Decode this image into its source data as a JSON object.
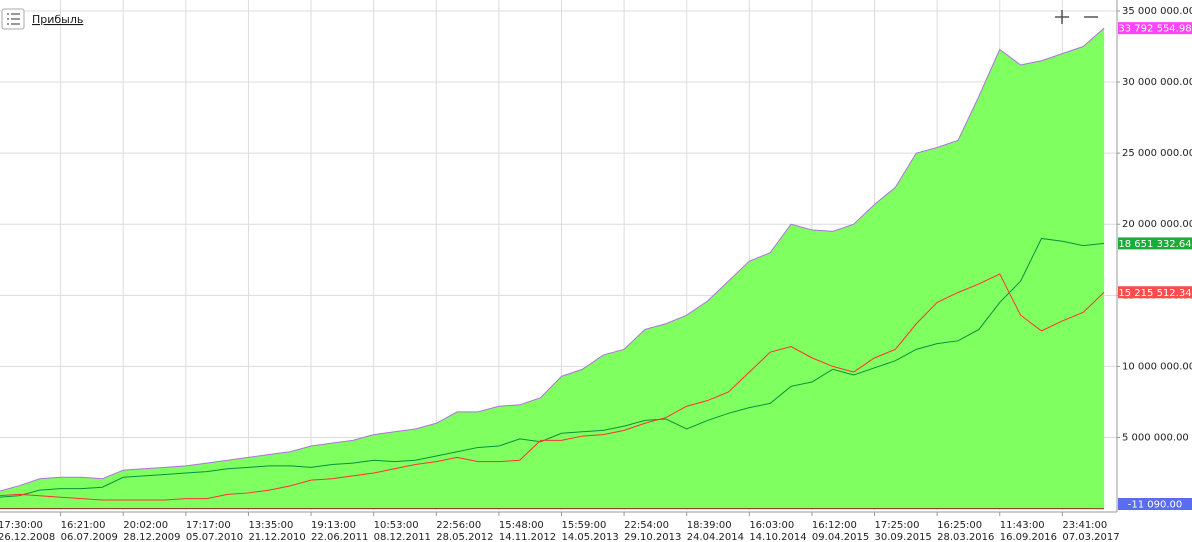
{
  "chart_data": {
    "type": "area",
    "title": "Прибыль",
    "categories": [
      "26.12.2008",
      null,
      null,
      "06.07.2009",
      null,
      null,
      "28.12.2009",
      null,
      null,
      "05.07.2010",
      null,
      null,
      "21.12.2010",
      null,
      null,
      "22.06.2011",
      null,
      null,
      "08.12.2011",
      null,
      null,
      "28.05.2012",
      null,
      null,
      "14.11.2012",
      null,
      null,
      "14.05.2013",
      null,
      null,
      "29.10.2013",
      null,
      null,
      "24.04.2014",
      null,
      null,
      "14.10.2014",
      null,
      null,
      "09.04.2015",
      null,
      null,
      "30.09.2015",
      null,
      null,
      "28.03.2016",
      null,
      null,
      "16.09.2016",
      null,
      null,
      "07.03.2017",
      null,
      null
    ],
    "times": [
      "17:30:00",
      null,
      null,
      "16:21:00",
      null,
      null,
      "20:02:00",
      null,
      null,
      "17:17:00",
      null,
      null,
      "13:35:00",
      null,
      null,
      "19:13:00",
      null,
      null,
      "10:53:00",
      null,
      null,
      "22:56:00",
      null,
      null,
      "15:48:00",
      null,
      null,
      "15:59:00",
      null,
      null,
      "22:54:00",
      null,
      null,
      "18:39:00",
      null,
      null,
      "16:03:00",
      null,
      null,
      "16:12:00",
      null,
      null,
      "17:25:00",
      null,
      null,
      "16:25:00",
      null,
      null,
      "11:43:00",
      null,
      null,
      "23:41:00",
      null,
      null
    ],
    "series": [
      {
        "kind": "area",
        "color": "#80ff60",
        "line_color": "#b070e0",
        "label_color": "#ff44ff",
        "last_label": "33 792 554.98",
        "values": [
          1200000,
          1600000,
          2100000,
          2200000,
          2200000,
          2100000,
          2700000,
          2800000,
          2900000,
          3000000,
          3200000,
          3400000,
          3600000,
          3800000,
          4000000,
          4400000,
          4600000,
          4800000,
          5200000,
          5400000,
          5600000,
          6000000,
          6800000,
          6800000,
          7200000,
          7300000,
          7800000,
          9300000,
          9800000,
          10800000,
          11200000,
          12600000,
          13000000,
          13600000,
          14600000,
          16000000,
          17400000,
          18000000,
          20000000,
          19600000,
          19500000,
          20000000,
          21400000,
          22600000,
          25000000,
          25400000,
          25900000,
          29000000,
          32300000,
          31200000,
          31500000,
          32000000,
          32500000,
          33792554.98
        ]
      },
      {
        "kind": "line",
        "color": "#00953a",
        "label_color": "#1aab3a",
        "last_label": "18 651 332.64",
        "values": [
          800000,
          900000,
          1300000,
          1400000,
          1400000,
          1500000,
          2200000,
          2300000,
          2400000,
          2500000,
          2600000,
          2800000,
          2900000,
          3000000,
          3000000,
          2900000,
          3100000,
          3200000,
          3400000,
          3300000,
          3400000,
          3700000,
          4000000,
          4300000,
          4400000,
          4900000,
          4700000,
          5300000,
          5400000,
          5500000,
          5800000,
          6200000,
          6300000,
          5600000,
          6200000,
          6700000,
          7100000,
          7400000,
          8600000,
          8900000,
          9800000,
          9400000,
          9900000,
          10400000,
          11200000,
          11600000,
          11800000,
          12600000,
          14500000,
          16000000,
          19000000,
          18800000,
          18500000,
          18651332.64
        ]
      },
      {
        "kind": "line",
        "color": "#ff3030",
        "label_color": "#ff4b4b",
        "last_label": "15 215 512.34",
        "values": [
          900000,
          1000000,
          900000,
          800000,
          700000,
          600000,
          600000,
          600000,
          600000,
          700000,
          700000,
          1000000,
          1100000,
          1300000,
          1600000,
          2000000,
          2100000,
          2300000,
          2500000,
          2800000,
          3100000,
          3300000,
          3600000,
          3300000,
          3300000,
          3400000,
          4800000,
          4800000,
          5100000,
          5200000,
          5500000,
          6000000,
          6400000,
          7200000,
          7600000,
          8200000,
          9600000,
          11000000,
          11400000,
          10600000,
          10000000,
          9600000,
          10600000,
          11200000,
          13000000,
          14500000,
          15200000,
          15800000,
          16500000,
          13600000,
          12500000,
          13200000,
          13800000,
          15215512.34
        ]
      },
      {
        "kind": "line",
        "color": "#8b2a2a",
        "label_color": "#5a6cf0",
        "last_label": "-11 090.00",
        "values": [
          0,
          0,
          0,
          0,
          0,
          0,
          0,
          0,
          0,
          0,
          0,
          0,
          0,
          0,
          0,
          0,
          0,
          0,
          0,
          0,
          0,
          0,
          0,
          0,
          0,
          0,
          0,
          0,
          0,
          0,
          0,
          0,
          0,
          0,
          0,
          0,
          0,
          0,
          0,
          0,
          0,
          0,
          0,
          0,
          0,
          0,
          0,
          0,
          0,
          0,
          0,
          0,
          0,
          -11090
        ]
      }
    ],
    "ylim": [
      -100000,
      35350000
    ],
    "yticks": [
      {
        "value": 5000000,
        "label": "5 000 000.00"
      },
      {
        "value": 10000000,
        "label": "10 000 000.00"
      },
      {
        "value": 15000000,
        "label": "15 000 000.00"
      },
      {
        "value": 20000000,
        "label": "20 000 000.00"
      },
      {
        "value": 25000000,
        "label": "25 000 000.00"
      },
      {
        "value": 30000000,
        "label": "30 000 000.00"
      },
      {
        "value": 35000000,
        "label": "35 000 000.00"
      }
    ],
    "grid": true
  }
}
